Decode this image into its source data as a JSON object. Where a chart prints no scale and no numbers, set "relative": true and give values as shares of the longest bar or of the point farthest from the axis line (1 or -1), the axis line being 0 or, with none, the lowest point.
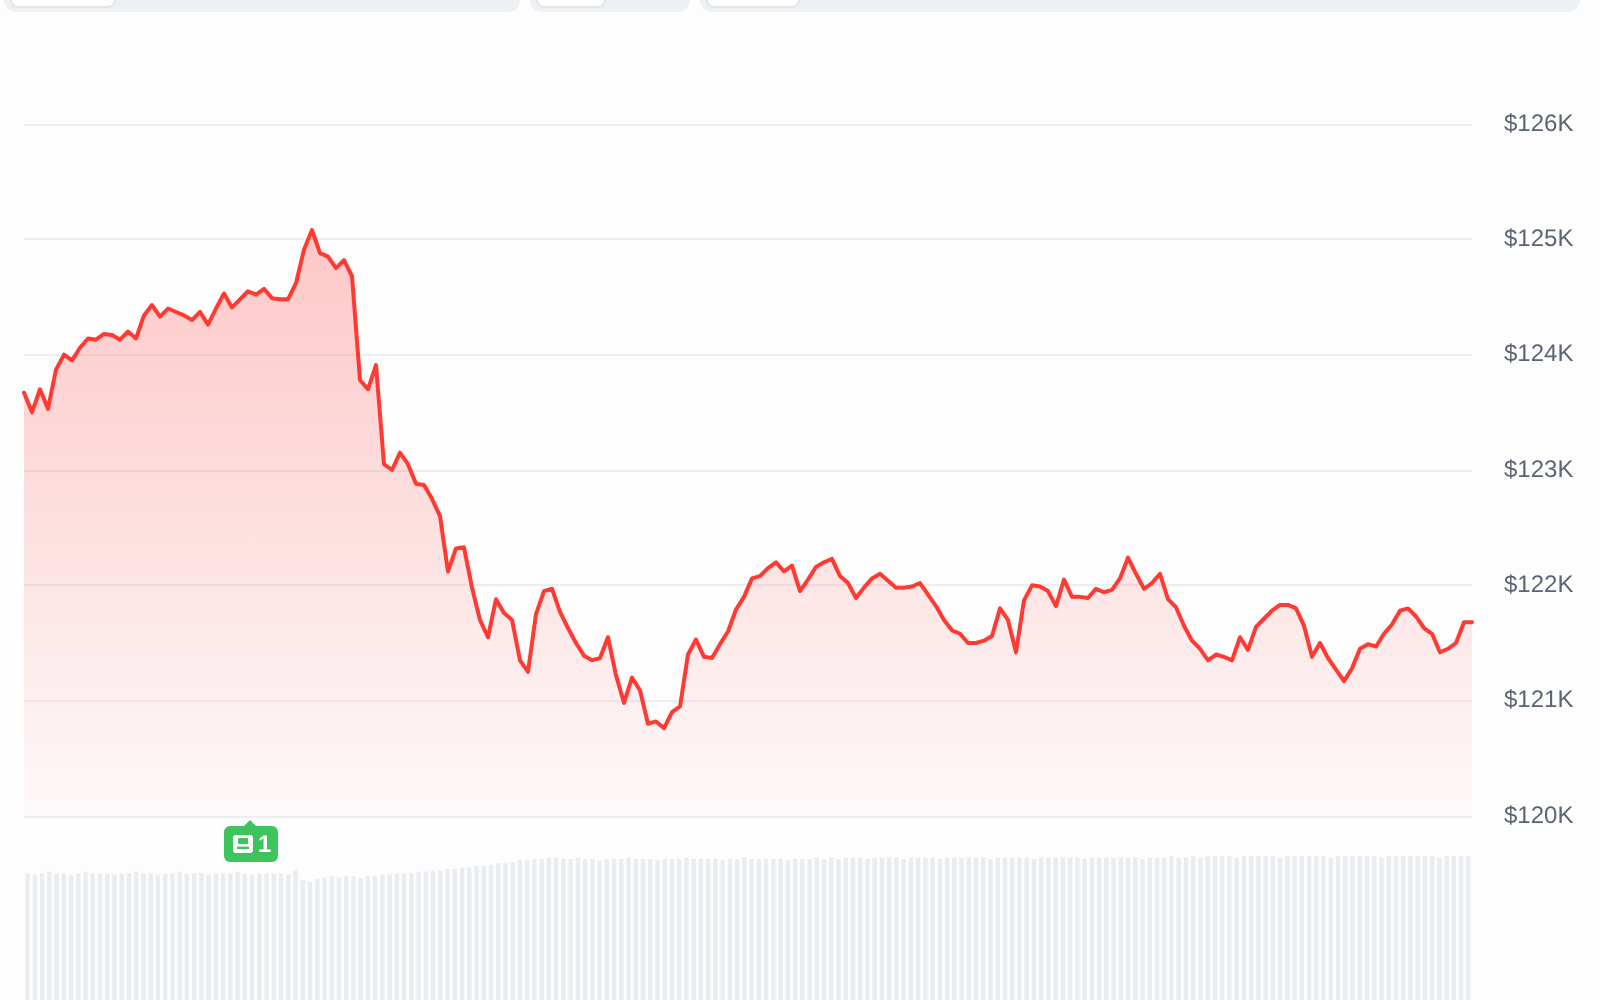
{
  "chart_data": [
    {
      "type": "area",
      "color": "#ff3a33",
      "marker": "none",
      "legend": false,
      "grid": "y",
      "ylim": [
        120,
        126
      ],
      "yticks": [
        {
          "value": 120,
          "label": "$120K"
        },
        {
          "value": 121,
          "label": "$121K"
        },
        {
          "value": 122,
          "label": "$122K"
        },
        {
          "value": 123,
          "label": "$123K"
        },
        {
          "value": 124,
          "label": "$124K"
        },
        {
          "value": 125,
          "label": "$125K"
        },
        {
          "value": 126,
          "label": "$126K"
        }
      ],
      "annotations": [
        "1"
      ],
      "categories": [
        null,
        null,
        null,
        null,
        null,
        null,
        null,
        null,
        null,
        null,
        null,
        null,
        null,
        null,
        null,
        null,
        null,
        null,
        null,
        null,
        null,
        null,
        null,
        null,
        null,
        null,
        null,
        null,
        null,
        null,
        null,
        null,
        null,
        null,
        null,
        null,
        null,
        null,
        null,
        null,
        null,
        null,
        null,
        null,
        null,
        null,
        null,
        null,
        null,
        null,
        null,
        null,
        null,
        null,
        null,
        null,
        null,
        null,
        null,
        null,
        null,
        null,
        null,
        null,
        null,
        null,
        null,
        null,
        null,
        null,
        null,
        null,
        null,
        null,
        null,
        null,
        null,
        null,
        null,
        null,
        null,
        null,
        null,
        null,
        null,
        null,
        null,
        null,
        null,
        null,
        null,
        null,
        null,
        null,
        null,
        null,
        null,
        null,
        null,
        null,
        null,
        null,
        null,
        null,
        null,
        null,
        null,
        null,
        null,
        null,
        null,
        null,
        null,
        null,
        null,
        null,
        null,
        null,
        null,
        null,
        null,
        null,
        null,
        null,
        null,
        null,
        null,
        null,
        null,
        null,
        null,
        null,
        null,
        null,
        null,
        null,
        null,
        null,
        null,
        null,
        null,
        null,
        null,
        null,
        null,
        null,
        null,
        null,
        null,
        null,
        null,
        null,
        null,
        null,
        null,
        null,
        null,
        null,
        null,
        null,
        null,
        null,
        null,
        null,
        null,
        null,
        null,
        null,
        null,
        null,
        null,
        null,
        null,
        null,
        null,
        null,
        null,
        null,
        null,
        null,
        null,
        null
      ],
      "values": [
        123.67,
        123.5,
        123.7,
        123.53,
        123.87,
        124.0,
        123.95,
        124.06,
        124.14,
        124.13,
        124.18,
        124.17,
        124.13,
        124.2,
        124.14,
        124.34,
        124.43,
        124.33,
        124.4,
        124.37,
        124.34,
        124.3,
        124.37,
        124.26,
        124.4,
        124.53,
        124.41,
        124.48,
        124.55,
        124.52,
        124.57,
        124.49,
        124.48,
        124.48,
        124.62,
        124.91,
        125.08,
        124.88,
        124.85,
        124.75,
        124.82,
        124.68,
        123.78,
        123.7,
        123.91,
        123.05,
        123.0,
        123.15,
        123.05,
        122.88,
        122.87,
        122.75,
        122.6,
        122.12,
        122.32,
        122.33,
        121.98,
        121.7,
        121.55,
        121.88,
        121.76,
        121.7,
        121.35,
        121.25,
        121.75,
        121.95,
        121.97,
        121.77,
        121.63,
        121.5,
        121.39,
        121.35,
        121.37,
        121.55,
        121.22,
        120.98,
        121.2,
        121.09,
        120.8,
        120.82,
        120.76,
        120.9,
        120.95,
        121.4,
        121.53,
        121.38,
        121.37,
        121.49,
        121.6,
        121.79,
        121.9,
        122.06,
        122.08,
        122.15,
        122.2,
        122.12,
        122.17,
        121.95,
        122.05,
        122.16,
        122.2,
        122.23,
        122.08,
        122.02,
        121.89,
        121.98,
        122.06,
        122.1,
        122.04,
        121.98,
        121.98,
        121.99,
        122.02,
        121.92,
        121.82,
        121.7,
        121.61,
        121.58,
        121.5,
        121.5,
        121.52,
        121.56,
        121.8,
        121.7,
        121.42,
        121.87,
        122.0,
        121.99,
        121.95,
        121.82,
        122.05,
        121.9,
        121.9,
        121.89,
        121.97,
        121.94,
        121.96,
        122.06,
        122.24,
        122.1,
        121.97,
        122.02,
        122.1,
        121.88,
        121.81,
        121.65,
        121.52,
        121.45,
        121.35,
        121.4,
        121.38,
        121.35,
        121.55,
        121.44,
        121.64,
        121.71,
        121.78,
        121.83,
        121.83,
        121.8,
        121.65,
        121.38,
        121.5,
        121.37,
        121.27,
        121.17,
        121.28,
        121.45,
        121.49,
        121.47,
        121.58,
        121.66,
        121.78,
        121.8,
        121.73,
        121.63,
        121.58,
        121.42,
        121.45,
        121.5,
        121.68,
        121.68
      ]
    },
    {
      "type": "bar",
      "color": "#e9edf1",
      "relative": true,
      "categories": [
        null,
        null,
        null,
        null,
        null,
        null,
        null,
        null,
        null,
        null,
        null,
        null,
        null,
        null,
        null,
        null,
        null,
        null,
        null,
        null,
        null,
        null,
        null,
        null,
        null,
        null,
        null,
        null,
        null,
        null,
        null,
        null,
        null,
        null,
        null,
        null,
        null,
        null,
        null,
        null,
        null,
        null,
        null,
        null,
        null,
        null,
        null,
        null,
        null,
        null,
        null,
        null,
        null,
        null,
        null,
        null,
        null,
        null,
        null,
        null,
        null,
        null,
        null,
        null,
        null,
        null,
        null,
        null,
        null,
        null,
        null,
        null,
        null,
        null,
        null,
        null,
        null,
        null,
        null,
        null,
        null,
        null,
        null,
        null,
        null,
        null,
        null,
        null,
        null,
        null,
        null,
        null,
        null,
        null,
        null,
        null,
        null,
        null,
        null,
        null,
        null,
        null,
        null,
        null,
        null,
        null,
        null,
        null,
        null,
        null,
        null,
        null,
        null,
        null,
        null,
        null,
        null,
        null,
        null,
        null,
        null,
        null,
        null,
        null,
        null,
        null,
        null,
        null,
        null,
        null,
        null,
        null,
        null,
        null,
        null,
        null,
        null,
        null,
        null,
        null,
        null,
        null,
        null,
        null,
        null,
        null,
        null,
        null,
        null,
        null,
        null,
        null,
        null,
        null,
        null,
        null,
        null,
        null,
        null,
        null,
        null,
        null,
        null,
        null,
        null,
        null,
        null,
        null,
        null,
        null,
        null,
        null,
        null,
        null,
        null,
        null,
        null,
        null,
        null,
        null,
        null,
        null,
        null,
        null,
        null,
        null,
        null,
        null,
        null,
        null,
        null,
        null,
        null,
        null,
        null,
        null,
        null,
        null,
        null,
        null
      ],
      "values": [
        0.88,
        0.87,
        0.88,
        0.89,
        0.88,
        0.88,
        0.87,
        0.88,
        0.89,
        0.88,
        0.88,
        0.88,
        0.87,
        0.88,
        0.88,
        0.89,
        0.88,
        0.88,
        0.87,
        0.88,
        0.88,
        0.89,
        0.88,
        0.88,
        0.88,
        0.87,
        0.88,
        0.88,
        0.88,
        0.89,
        0.88,
        0.87,
        0.88,
        0.88,
        0.88,
        0.88,
        0.87,
        0.9,
        0.83,
        0.82,
        0.84,
        0.85,
        0.86,
        0.85,
        0.86,
        0.86,
        0.85,
        0.86,
        0.86,
        0.87,
        0.87,
        0.88,
        0.88,
        0.88,
        0.89,
        0.89,
        0.9,
        0.9,
        0.91,
        0.91,
        0.92,
        0.92,
        0.93,
        0.93,
        0.94,
        0.95,
        0.95,
        0.96,
        0.97,
        0.97,
        0.98,
        0.98,
        0.99,
        0.99,
        0.98,
        0.98,
        0.99,
        0.98,
        0.98,
        0.97,
        0.98,
        0.98,
        0.98,
        0.99,
        0.98,
        0.98,
        0.98,
        0.97,
        0.98,
        0.98,
        0.98,
        0.99,
        0.98,
        0.98,
        0.98,
        0.98,
        0.97,
        0.98,
        0.98,
        0.99,
        0.98,
        0.98,
        0.98,
        0.98,
        0.98,
        0.97,
        0.98,
        0.98,
        0.98,
        0.99,
        0.98,
        0.99,
        0.98,
        0.99,
        0.99,
        0.99,
        0.98,
        0.99,
        0.99,
        0.99,
        0.99,
        0.98,
        0.99,
        0.99,
        0.99,
        0.99,
        0.98,
        0.99,
        0.99,
        0.99,
        0.99,
        0.99,
        0.99,
        0.98,
        0.99,
        0.99,
        0.99,
        0.99,
        0.99,
        0.98,
        0.99,
        0.99,
        0.99,
        0.99,
        0.99,
        0.99,
        0.98,
        0.99,
        0.99,
        0.99,
        0.99,
        0.99,
        0.99,
        0.99,
        0.98,
        0.99,
        0.99,
        0.99,
        1.0,
        0.99,
        0.99,
        1.0,
        0.99,
        1.0,
        1.0,
        1.0,
        1.0,
        0.99,
        1.0,
        1.0,
        1.0,
        1.0,
        1.0,
        0.99,
        1.0,
        1.0,
        1.0,
        1.0,
        1.0,
        1.0,
        0.99,
        1.0,
        1.0,
        1.0,
        1.0,
        1.0,
        1.0,
        0.99,
        1.0,
        1.0,
        1.0,
        1.0,
        1.0,
        1.0,
        1.0,
        0.99,
        1.0,
        1.0,
        1.0,
        1.0
      ]
    }
  ]
}
